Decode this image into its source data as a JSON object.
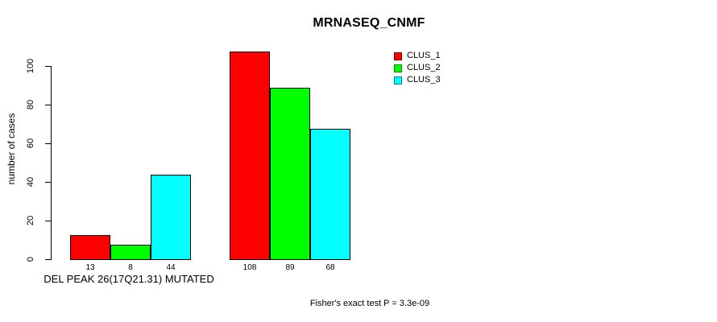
{
  "chart_data": {
    "type": "bar",
    "title": "MRNASEQ_CNMF",
    "ylabel": "number of cases",
    "xlabel": "",
    "ylim": [
      0,
      100
    ],
    "yticks": [
      0,
      20,
      40,
      60,
      80,
      100
    ],
    "grid": false,
    "legend_position": "top-right-inside",
    "group_labels": [
      "DEL PEAK 26(17Q21.31) MUTATED",
      ""
    ],
    "series": [
      {
        "name": "CLUS_1",
        "color": "#ff0000",
        "values": [
          13,
          108
        ]
      },
      {
        "name": "CLUS_2",
        "color": "#00ff00",
        "values": [
          8,
          89
        ]
      },
      {
        "name": "CLUS_3",
        "color": "#00ffff",
        "values": [
          44,
          68
        ]
      }
    ],
    "show_bar_values": true,
    "bar_value_labels": [
      [
        "13",
        "8",
        "44"
      ],
      [
        "108",
        "89",
        "68"
      ]
    ],
    "annotation": "Fisher's exact test P = 3.3e-09",
    "axis_color": "#000000",
    "bar_border_color": "#000000",
    "background_color": "#ffffff"
  }
}
